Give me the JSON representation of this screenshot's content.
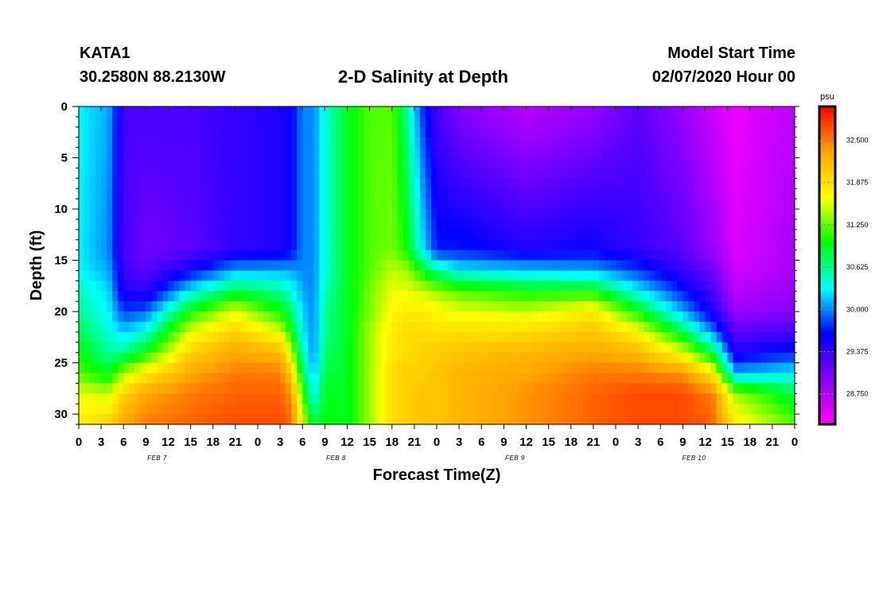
{
  "header": {
    "station": "KATA1",
    "coords": "30.2580N 88.2130W",
    "title": "2-D Salinity at Depth",
    "model_label": "Model Start Time",
    "model_time": "02/07/2020 Hour 00"
  },
  "chart_data": {
    "type": "heatmap",
    "title": "2-D Salinity at Depth",
    "xlabel": "Forecast Time(Z)",
    "ylabel": "Depth (ft)",
    "x_hours_range": [
      0,
      96
    ],
    "x_tick_step_hours": 3,
    "x_tick_labels": [
      "0",
      "3",
      "6",
      "9",
      "12",
      "15",
      "18",
      "21",
      "0",
      "3",
      "6",
      "9",
      "12",
      "15",
      "18",
      "21",
      "0",
      "3",
      "6",
      "9",
      "12",
      "15",
      "18",
      "21",
      "0",
      "3",
      "6",
      "9",
      "12",
      "15",
      "18",
      "21",
      "0"
    ],
    "day_labels": [
      {
        "text": "FEB 7",
        "hour": 10.5
      },
      {
        "text": "FEB 8",
        "hour": 34.5
      },
      {
        "text": "FEB 9",
        "hour": 58.5
      },
      {
        "text": "FEB 10",
        "hour": 82.5
      }
    ],
    "ylim": [
      31,
      0
    ],
    "y_ticks": [
      0,
      5,
      10,
      15,
      20,
      25,
      30
    ],
    "colorbar": {
      "unit": "psu",
      "range": [
        28.3,
        33.0
      ],
      "tick_values": [
        32.5,
        31.875,
        31.25,
        30.625,
        30.0,
        29.375,
        28.75
      ],
      "tick_labels": [
        "32.500",
        "31.875",
        "31.250",
        "30.625",
        "30.000",
        "29.375",
        "28.750"
      ],
      "colors": [
        "#ff00ff",
        "#8a00ff",
        "#0000ff",
        "#00ffff",
        "#00ff00",
        "#ffff00",
        "#ffa500",
        "#ff0000"
      ]
    },
    "salinity_profile": {
      "profile_depth_ft": [
        0,
        14,
        16,
        18,
        20,
        22,
        24,
        26,
        28,
        31
      ],
      "columns": [
        {
          "hour": 0,
          "values": [
            30.3,
            30.3,
            30.3,
            30.5,
            30.6,
            30.8,
            31.0,
            31.2,
            31.6,
            31.8
          ]
        },
        {
          "hour": 4,
          "values": [
            30.1,
            30.0,
            30.1,
            30.2,
            30.3,
            30.4,
            30.6,
            30.9,
            31.5,
            32.0
          ]
        },
        {
          "hour": 6,
          "values": [
            29.3,
            29.3,
            29.35,
            29.5,
            29.8,
            30.2,
            30.6,
            31.4,
            32.0,
            32.3
          ]
        },
        {
          "hour": 9,
          "values": [
            29.3,
            29.1,
            29.2,
            29.4,
            29.9,
            30.4,
            31.0,
            31.8,
            32.3,
            32.5
          ]
        },
        {
          "hour": 15,
          "values": [
            29.3,
            29.2,
            29.6,
            30.3,
            31.0,
            31.6,
            32.0,
            32.3,
            32.5,
            32.6
          ]
        },
        {
          "hour": 21,
          "values": [
            29.4,
            29.4,
            30.1,
            30.8,
            31.6,
            32.0,
            32.3,
            32.5,
            32.6,
            32.7
          ]
        },
        {
          "hour": 27,
          "values": [
            29.5,
            29.5,
            30.1,
            30.6,
            31.0,
            31.6,
            32.2,
            32.5,
            32.6,
            32.7
          ]
        },
        {
          "hour": 28.5,
          "values": [
            29.6,
            29.6,
            30.1,
            30.4,
            30.7,
            31.0,
            31.5,
            32.0,
            32.4,
            32.6
          ]
        },
        {
          "hour": 30,
          "values": [
            30.0,
            30.0,
            30.0,
            30.1,
            30.2,
            30.3,
            30.5,
            30.8,
            31.2,
            31.6
          ]
        },
        {
          "hour": 31.5,
          "values": [
            30.0,
            30.0,
            30.0,
            30.0,
            30.0,
            30.0,
            30.0,
            30.1,
            30.3,
            30.8
          ]
        },
        {
          "hour": 33,
          "values": [
            30.4,
            30.4,
            30.4,
            30.5,
            30.6,
            30.6,
            30.7,
            30.8,
            30.9,
            31.0
          ]
        },
        {
          "hour": 36,
          "values": [
            30.9,
            30.9,
            30.9,
            30.9,
            30.9,
            30.9,
            30.9,
            30.9,
            30.9,
            30.9
          ]
        },
        {
          "hour": 39,
          "values": [
            31.2,
            31.2,
            31.2,
            31.3,
            31.3,
            31.4,
            31.4,
            31.4,
            31.4,
            31.4
          ]
        },
        {
          "hour": 42,
          "values": [
            31.2,
            31.3,
            31.5,
            31.6,
            31.7,
            31.8,
            31.8,
            31.9,
            31.9,
            31.9
          ]
        },
        {
          "hour": 44,
          "values": [
            30.6,
            31.0,
            31.4,
            31.6,
            31.8,
            31.9,
            31.9,
            32.0,
            32.0,
            32.0
          ]
        },
        {
          "hour": 46,
          "values": [
            29.8,
            30.3,
            31.0,
            31.5,
            31.8,
            31.9,
            32.0,
            32.0,
            32.1,
            32.1
          ]
        },
        {
          "hour": 48,
          "values": [
            29.3,
            29.7,
            30.6,
            31.4,
            31.7,
            31.9,
            32.0,
            32.1,
            32.1,
            32.1
          ]
        },
        {
          "hour": 51,
          "values": [
            29.0,
            29.7,
            30.3,
            31.2,
            31.6,
            31.9,
            32.1,
            32.2,
            32.2,
            32.2
          ]
        },
        {
          "hour": 60,
          "values": [
            28.7,
            29.5,
            30.2,
            31.0,
            31.5,
            31.9,
            32.2,
            32.3,
            32.4,
            32.4
          ]
        },
        {
          "hour": 69,
          "values": [
            28.9,
            29.6,
            30.1,
            31.0,
            31.8,
            32.1,
            32.3,
            32.5,
            32.6,
            32.6
          ]
        },
        {
          "hour": 75,
          "values": [
            29.2,
            29.4,
            29.8,
            30.3,
            31.0,
            31.7,
            32.2,
            32.5,
            32.7,
            32.7
          ]
        },
        {
          "hour": 81,
          "values": [
            28.9,
            29.2,
            29.4,
            29.7,
            30.1,
            30.8,
            31.6,
            32.4,
            32.7,
            32.7
          ]
        },
        {
          "hour": 85,
          "values": [
            28.6,
            28.9,
            29.1,
            29.3,
            29.5,
            30.0,
            30.8,
            31.8,
            32.5,
            32.6
          ]
        },
        {
          "hour": 88,
          "values": [
            28.4,
            28.5,
            28.6,
            28.7,
            28.9,
            29.2,
            29.5,
            30.1,
            31.4,
            31.8
          ]
        },
        {
          "hour": 96,
          "values": [
            28.7,
            28.8,
            28.8,
            28.9,
            29.0,
            29.3,
            29.7,
            30.3,
            30.8,
            31.2
          ]
        }
      ]
    }
  }
}
